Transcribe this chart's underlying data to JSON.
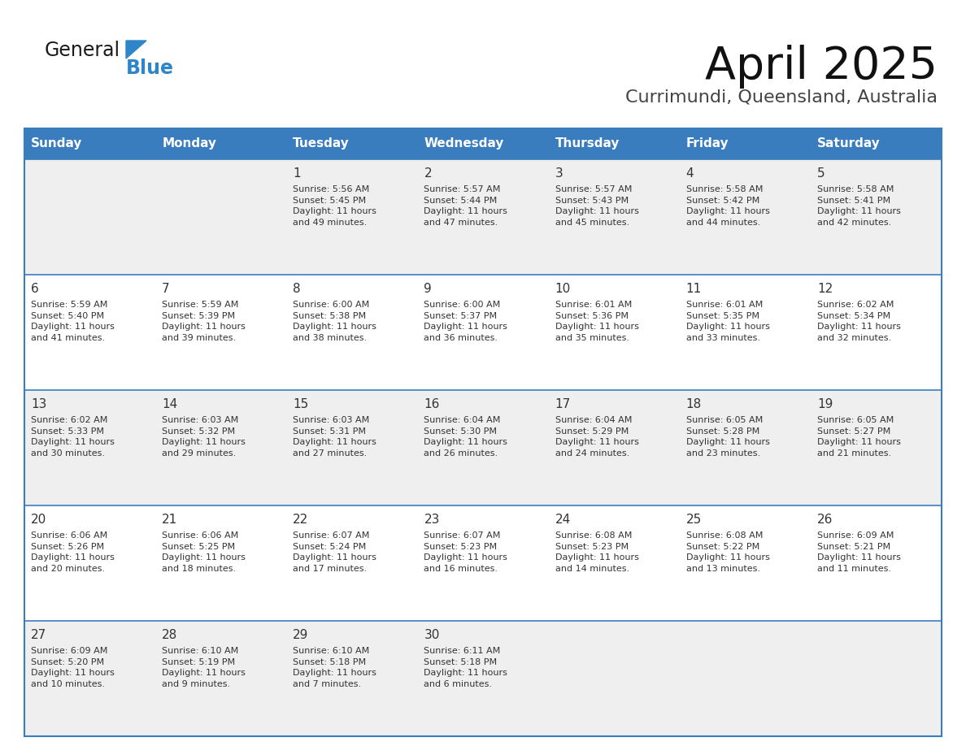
{
  "title": "April 2025",
  "subtitle": "Currimundi, Queensland, Australia",
  "header_color": "#3a7dbf",
  "header_text_color": "#ffffff",
  "cell_bg_even": "#efefef",
  "cell_bg_odd": "#ffffff",
  "border_color": "#3a7dbf",
  "text_color": "#333333",
  "days_of_week": [
    "Sunday",
    "Monday",
    "Tuesday",
    "Wednesday",
    "Thursday",
    "Friday",
    "Saturday"
  ],
  "logo_general_color": "#1a1a1a",
  "logo_blue_color": "#2e86c8",
  "logo_triangle_color": "#2e86c8",
  "weeks": [
    [
      {
        "day": "",
        "info": ""
      },
      {
        "day": "",
        "info": ""
      },
      {
        "day": "1",
        "info": "Sunrise: 5:56 AM\nSunset: 5:45 PM\nDaylight: 11 hours\nand 49 minutes."
      },
      {
        "day": "2",
        "info": "Sunrise: 5:57 AM\nSunset: 5:44 PM\nDaylight: 11 hours\nand 47 minutes."
      },
      {
        "day": "3",
        "info": "Sunrise: 5:57 AM\nSunset: 5:43 PM\nDaylight: 11 hours\nand 45 minutes."
      },
      {
        "day": "4",
        "info": "Sunrise: 5:58 AM\nSunset: 5:42 PM\nDaylight: 11 hours\nand 44 minutes."
      },
      {
        "day": "5",
        "info": "Sunrise: 5:58 AM\nSunset: 5:41 PM\nDaylight: 11 hours\nand 42 minutes."
      }
    ],
    [
      {
        "day": "6",
        "info": "Sunrise: 5:59 AM\nSunset: 5:40 PM\nDaylight: 11 hours\nand 41 minutes."
      },
      {
        "day": "7",
        "info": "Sunrise: 5:59 AM\nSunset: 5:39 PM\nDaylight: 11 hours\nand 39 minutes."
      },
      {
        "day": "8",
        "info": "Sunrise: 6:00 AM\nSunset: 5:38 PM\nDaylight: 11 hours\nand 38 minutes."
      },
      {
        "day": "9",
        "info": "Sunrise: 6:00 AM\nSunset: 5:37 PM\nDaylight: 11 hours\nand 36 minutes."
      },
      {
        "day": "10",
        "info": "Sunrise: 6:01 AM\nSunset: 5:36 PM\nDaylight: 11 hours\nand 35 minutes."
      },
      {
        "day": "11",
        "info": "Sunrise: 6:01 AM\nSunset: 5:35 PM\nDaylight: 11 hours\nand 33 minutes."
      },
      {
        "day": "12",
        "info": "Sunrise: 6:02 AM\nSunset: 5:34 PM\nDaylight: 11 hours\nand 32 minutes."
      }
    ],
    [
      {
        "day": "13",
        "info": "Sunrise: 6:02 AM\nSunset: 5:33 PM\nDaylight: 11 hours\nand 30 minutes."
      },
      {
        "day": "14",
        "info": "Sunrise: 6:03 AM\nSunset: 5:32 PM\nDaylight: 11 hours\nand 29 minutes."
      },
      {
        "day": "15",
        "info": "Sunrise: 6:03 AM\nSunset: 5:31 PM\nDaylight: 11 hours\nand 27 minutes."
      },
      {
        "day": "16",
        "info": "Sunrise: 6:04 AM\nSunset: 5:30 PM\nDaylight: 11 hours\nand 26 minutes."
      },
      {
        "day": "17",
        "info": "Sunrise: 6:04 AM\nSunset: 5:29 PM\nDaylight: 11 hours\nand 24 minutes."
      },
      {
        "day": "18",
        "info": "Sunrise: 6:05 AM\nSunset: 5:28 PM\nDaylight: 11 hours\nand 23 minutes."
      },
      {
        "day": "19",
        "info": "Sunrise: 6:05 AM\nSunset: 5:27 PM\nDaylight: 11 hours\nand 21 minutes."
      }
    ],
    [
      {
        "day": "20",
        "info": "Sunrise: 6:06 AM\nSunset: 5:26 PM\nDaylight: 11 hours\nand 20 minutes."
      },
      {
        "day": "21",
        "info": "Sunrise: 6:06 AM\nSunset: 5:25 PM\nDaylight: 11 hours\nand 18 minutes."
      },
      {
        "day": "22",
        "info": "Sunrise: 6:07 AM\nSunset: 5:24 PM\nDaylight: 11 hours\nand 17 minutes."
      },
      {
        "day": "23",
        "info": "Sunrise: 6:07 AM\nSunset: 5:23 PM\nDaylight: 11 hours\nand 16 minutes."
      },
      {
        "day": "24",
        "info": "Sunrise: 6:08 AM\nSunset: 5:23 PM\nDaylight: 11 hours\nand 14 minutes."
      },
      {
        "day": "25",
        "info": "Sunrise: 6:08 AM\nSunset: 5:22 PM\nDaylight: 11 hours\nand 13 minutes."
      },
      {
        "day": "26",
        "info": "Sunrise: 6:09 AM\nSunset: 5:21 PM\nDaylight: 11 hours\nand 11 minutes."
      }
    ],
    [
      {
        "day": "27",
        "info": "Sunrise: 6:09 AM\nSunset: 5:20 PM\nDaylight: 11 hours\nand 10 minutes."
      },
      {
        "day": "28",
        "info": "Sunrise: 6:10 AM\nSunset: 5:19 PM\nDaylight: 11 hours\nand 9 minutes."
      },
      {
        "day": "29",
        "info": "Sunrise: 6:10 AM\nSunset: 5:18 PM\nDaylight: 11 hours\nand 7 minutes."
      },
      {
        "day": "30",
        "info": "Sunrise: 6:11 AM\nSunset: 5:18 PM\nDaylight: 11 hours\nand 6 minutes."
      },
      {
        "day": "",
        "info": ""
      },
      {
        "day": "",
        "info": ""
      },
      {
        "day": "",
        "info": ""
      }
    ]
  ]
}
